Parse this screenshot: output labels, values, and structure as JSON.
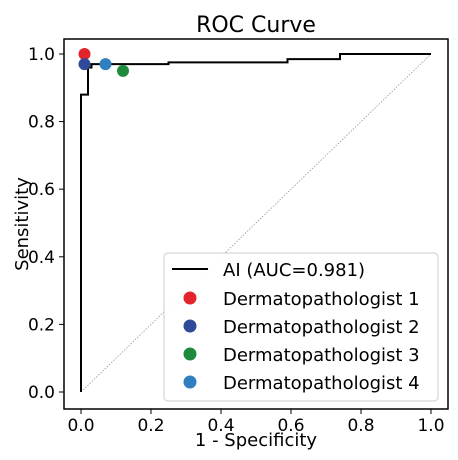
{
  "chart_data": {
    "type": "line",
    "title": "ROC Curve",
    "xlabel": "1 - Specificity",
    "ylabel": "Sensitivity",
    "xlim": [
      0,
      1
    ],
    "ylim": [
      0,
      1
    ],
    "xticks": [
      0.0,
      0.2,
      0.4,
      0.6,
      0.8,
      1.0
    ],
    "yticks": [
      0.0,
      0.2,
      0.4,
      0.6,
      0.8,
      1.0
    ],
    "xtick_labels": [
      "0.0",
      "0.2",
      "0.4",
      "0.6",
      "0.8",
      "1.0"
    ],
    "ytick_labels": [
      "0.0",
      "0.2",
      "0.4",
      "0.6",
      "0.8",
      "1.0"
    ],
    "legend_position": "lower-right",
    "diagonal_reference": true,
    "series": [
      {
        "name": "AI (AUC=0.981)",
        "kind": "line",
        "color": "#000000",
        "x": [
          0.0,
          0.0,
          0.0,
          0.02,
          0.02,
          0.03,
          0.03,
          0.25,
          0.25,
          0.59,
          0.59,
          0.74,
          0.74,
          1.0
        ],
        "y": [
          0.0,
          0.88,
          0.88,
          0.88,
          0.96,
          0.96,
          0.97,
          0.97,
          0.975,
          0.975,
          0.985,
          0.985,
          1.0,
          1.0
        ]
      },
      {
        "name": "Dermatopathologist 1",
        "kind": "point",
        "color": "#e3242b",
        "x": [
          0.01
        ],
        "y": [
          1.0
        ]
      },
      {
        "name": "Dermatopathologist 2",
        "kind": "point",
        "color": "#2f4a99",
        "x": [
          0.01
        ],
        "y": [
          0.97
        ]
      },
      {
        "name": "Dermatopathologist 3",
        "kind": "point",
        "color": "#1f8a3c",
        "x": [
          0.12
        ],
        "y": [
          0.95
        ]
      },
      {
        "name": "Dermatopathologist 4",
        "kind": "point",
        "color": "#2f7fc1",
        "x": [
          0.07
        ],
        "y": [
          0.97
        ]
      }
    ]
  }
}
